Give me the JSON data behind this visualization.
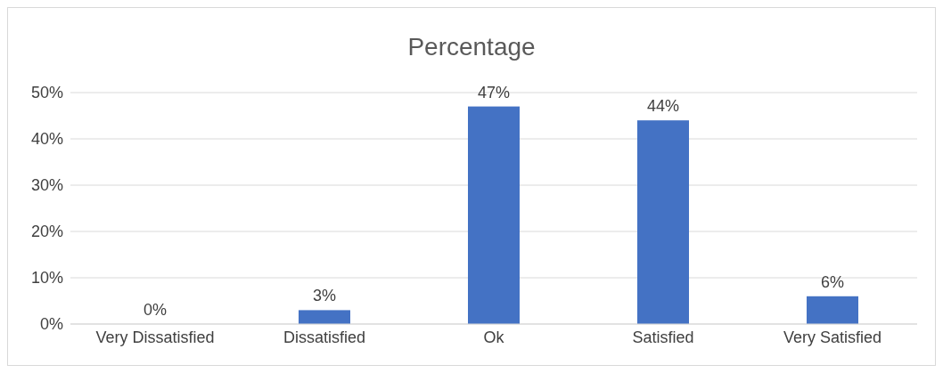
{
  "chart_data": {
    "type": "bar",
    "title": "Percentage",
    "categories": [
      "Very Dissatisfied",
      "Dissatisfied",
      "Ok",
      "Satisfied",
      "Very Satisfied"
    ],
    "values": [
      0,
      3,
      47,
      44,
      6
    ],
    "value_labels": [
      "0%",
      "3%",
      "47%",
      "44%",
      "6%"
    ],
    "color": "#4472c4",
    "ylim": [
      0,
      50
    ],
    "yticks": [
      {
        "value": 0,
        "label": "0%"
      },
      {
        "value": 10,
        "label": "10%"
      },
      {
        "value": 20,
        "label": "20%"
      },
      {
        "value": 30,
        "label": "30%"
      },
      {
        "value": 40,
        "label": "40%"
      },
      {
        "value": 50,
        "label": "50%"
      }
    ],
    "grid": "y"
  }
}
